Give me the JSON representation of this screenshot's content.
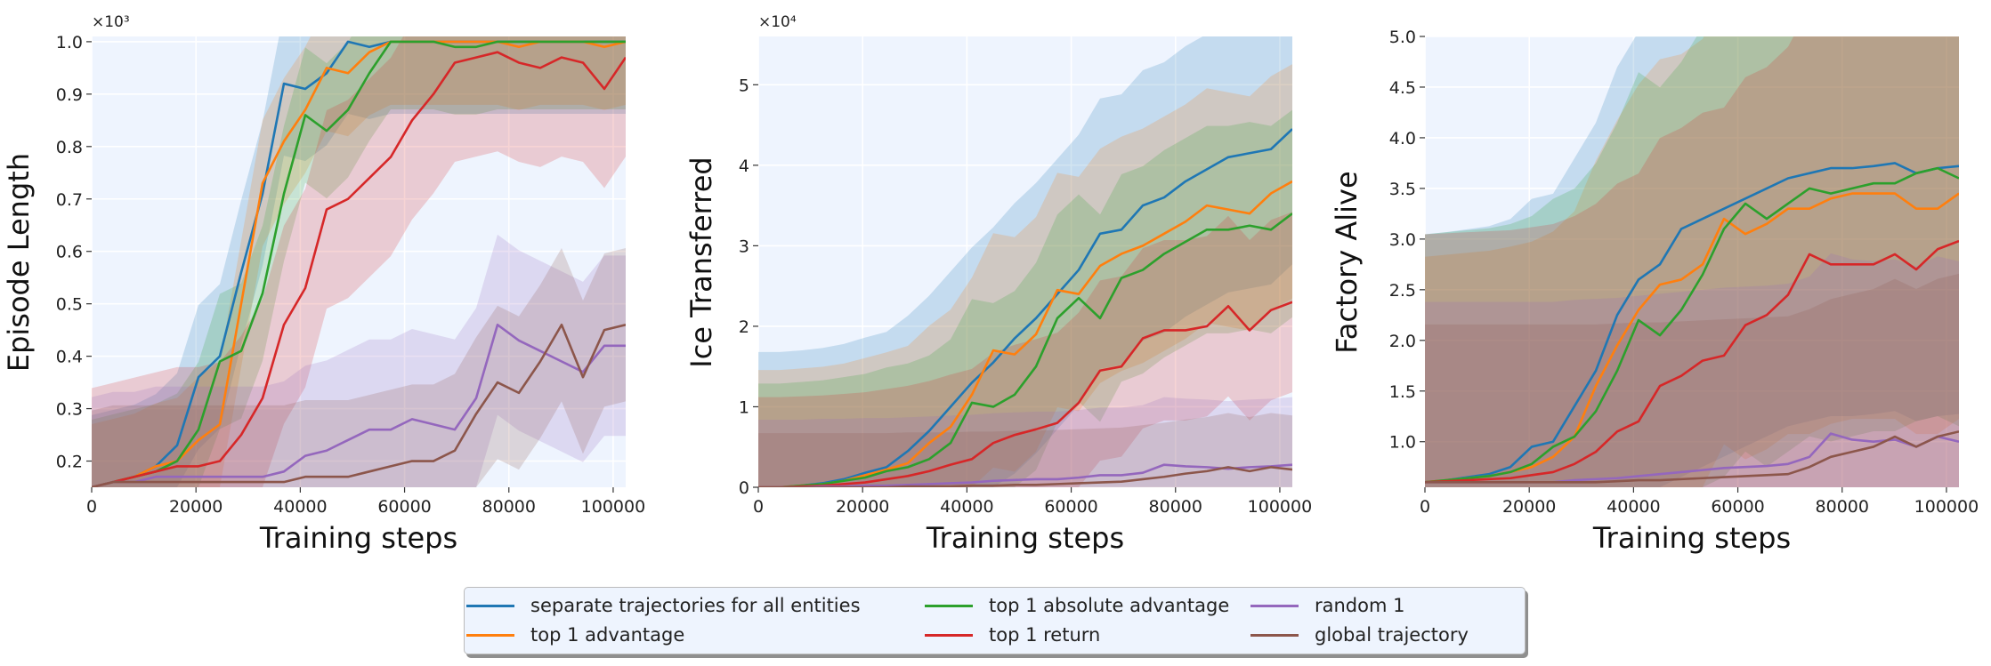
{
  "legend": {
    "items": [
      {
        "label": "separate trajectories for all entities",
        "color": "#1f77b4"
      },
      {
        "label": "top 1 advantage",
        "color": "#ff7f0e"
      },
      {
        "label": "top 1 absolute advantage",
        "color": "#2ca02c"
      },
      {
        "label": "top 1 return",
        "color": "#d62728"
      },
      {
        "label": "random 1",
        "color": "#9467bd"
      },
      {
        "label": "global trajectory",
        "color": "#8c564b"
      }
    ]
  },
  "colors": {
    "plot_background": "#eef4fe",
    "grid": "#ffffff",
    "series": [
      "#1f77b4",
      "#ff7f0e",
      "#2ca02c",
      "#d62728",
      "#9467bd",
      "#8c564b"
    ]
  },
  "chart_data": [
    {
      "type": "line",
      "xlabel": "Training steps",
      "ylabel": "Episode Length",
      "multiplier": "×10³",
      "xlim": [
        0,
        102400
      ],
      "ylim": [
        0.15,
        1.01
      ],
      "xticks": [
        0,
        20000,
        40000,
        60000,
        80000,
        100000
      ],
      "xtick_labels": [
        "0",
        "20000",
        "40000",
        "60000",
        "80000",
        "100000"
      ],
      "yticks": [
        0.2,
        0.3,
        0.4,
        0.5,
        0.6,
        0.7,
        0.8,
        0.9,
        1.0
      ],
      "ytick_labels": [
        "0.2",
        "0.3",
        "0.4",
        "0.5",
        "0.6",
        "0.7",
        "0.8",
        "0.9",
        "1.0"
      ],
      "grid": true,
      "x": [
        0,
        4096,
        8192,
        12288,
        16384,
        20480,
        24576,
        28672,
        32768,
        36864,
        40960,
        45056,
        49152,
        53248,
        57344,
        61440,
        65536,
        69632,
        73728,
        77824,
        81920,
        86016,
        90112,
        94208,
        98304,
        102400
      ],
      "series": [
        {
          "name": "separate trajectories for all entities",
          "color": "#1f77b4",
          "band": 0.16,
          "values": [
            0.15,
            0.16,
            0.17,
            0.19,
            0.23,
            0.36,
            0.4,
            0.56,
            0.71,
            0.92,
            0.91,
            0.94,
            1.0,
            0.99,
            1.0,
            1.0,
            1.0,
            1.0,
            1.0,
            1.0,
            1.0,
            1.0,
            1.0,
            1.0,
            1.0,
            1.0
          ]
        },
        {
          "name": "top 1 advantage",
          "color": "#ff7f0e",
          "band": 0.14,
          "values": [
            0.15,
            0.16,
            0.17,
            0.19,
            0.2,
            0.24,
            0.27,
            0.5,
            0.73,
            0.81,
            0.87,
            0.95,
            0.94,
            0.98,
            1.0,
            1.0,
            1.0,
            1.0,
            1.0,
            1.0,
            0.99,
            1.0,
            1.0,
            1.0,
            0.99,
            1.0
          ]
        },
        {
          "name": "top 1 absolute advantage",
          "color": "#2ca02c",
          "band": 0.15,
          "values": [
            0.15,
            0.16,
            0.17,
            0.18,
            0.2,
            0.26,
            0.39,
            0.41,
            0.52,
            0.71,
            0.86,
            0.83,
            0.87,
            0.94,
            1.0,
            1.0,
            1.0,
            0.99,
            0.99,
            1.0,
            1.0,
            1.0,
            1.0,
            1.0,
            1.0,
            1.0
          ]
        },
        {
          "name": "top 1 return",
          "color": "#d62728",
          "band": 0.22,
          "values": [
            0.15,
            0.16,
            0.17,
            0.18,
            0.19,
            0.19,
            0.2,
            0.25,
            0.32,
            0.46,
            0.53,
            0.68,
            0.7,
            0.74,
            0.78,
            0.85,
            0.9,
            0.96,
            0.97,
            0.98,
            0.96,
            0.95,
            0.97,
            0.96,
            0.91,
            0.97
          ]
        },
        {
          "name": "random 1",
          "color": "#9467bd",
          "band": 0.2,
          "values": [
            0.15,
            0.16,
            0.16,
            0.17,
            0.17,
            0.17,
            0.17,
            0.17,
            0.17,
            0.18,
            0.21,
            0.22,
            0.24,
            0.26,
            0.26,
            0.28,
            0.27,
            0.26,
            0.32,
            0.46,
            0.43,
            0.41,
            0.39,
            0.37,
            0.42,
            0.42
          ]
        },
        {
          "name": "global trajectory",
          "color": "#8c564b",
          "band": 0.17,
          "values": [
            0.15,
            0.16,
            0.16,
            0.16,
            0.16,
            0.16,
            0.16,
            0.16,
            0.16,
            0.16,
            0.17,
            0.17,
            0.17,
            0.18,
            0.19,
            0.2,
            0.2,
            0.22,
            0.29,
            0.35,
            0.33,
            0.39,
            0.46,
            0.36,
            0.45,
            0.46
          ]
        }
      ]
    },
    {
      "type": "line",
      "xlabel": "Training steps",
      "ylabel": "Ice Transferred",
      "multiplier": "×10⁴",
      "xlim": [
        0,
        102400
      ],
      "ylim": [
        0,
        5.6
      ],
      "xticks": [
        0,
        20000,
        40000,
        60000,
        80000,
        100000
      ],
      "xtick_labels": [
        "0",
        "20000",
        "40000",
        "60000",
        "80000",
        "100000"
      ],
      "yticks": [
        0,
        1,
        2,
        3,
        4,
        5
      ],
      "ytick_labels": [
        "0",
        "1",
        "2",
        "3",
        "4",
        "5"
      ],
      "grid": true,
      "x": [
        0,
        4096,
        8192,
        12288,
        16384,
        20480,
        24576,
        28672,
        32768,
        36864,
        40960,
        45056,
        49152,
        53248,
        57344,
        61440,
        65536,
        69632,
        73728,
        77824,
        81920,
        86016,
        90112,
        94208,
        98304,
        102400
      ],
      "series": [
        {
          "name": "separate trajectories for all entities",
          "color": "#1f77b4",
          "band": 0.3,
          "values": [
            0,
            0,
            0.02,
            0.05,
            0.1,
            0.18,
            0.25,
            0.45,
            0.7,
            1.0,
            1.3,
            1.55,
            1.85,
            2.1,
            2.4,
            2.7,
            3.15,
            3.2,
            3.5,
            3.6,
            3.8,
            3.95,
            4.1,
            4.15,
            4.2,
            4.45
          ]
        },
        {
          "name": "top 1 advantage",
          "color": "#ff7f0e",
          "band": 0.26,
          "values": [
            0,
            0,
            0.02,
            0.04,
            0.08,
            0.15,
            0.22,
            0.3,
            0.55,
            0.75,
            1.15,
            1.7,
            1.65,
            1.9,
            2.45,
            2.4,
            2.75,
            2.9,
            3.0,
            3.15,
            3.3,
            3.5,
            3.45,
            3.4,
            3.65,
            3.8
          ]
        },
        {
          "name": "top 1 absolute advantage",
          "color": "#2ca02c",
          "band": 0.23,
          "values": [
            0,
            0,
            0.02,
            0.04,
            0.08,
            0.12,
            0.2,
            0.25,
            0.35,
            0.55,
            1.05,
            1.0,
            1.15,
            1.5,
            2.1,
            2.35,
            2.1,
            2.6,
            2.7,
            2.9,
            3.05,
            3.2,
            3.2,
            3.25,
            3.2,
            3.4
          ]
        },
        {
          "name": "top 1 return",
          "color": "#d62728",
          "band": 0.2,
          "values": [
            0,
            0,
            0.01,
            0.02,
            0.04,
            0.06,
            0.1,
            0.14,
            0.2,
            0.28,
            0.35,
            0.55,
            0.65,
            0.72,
            0.8,
            1.05,
            1.45,
            1.5,
            1.85,
            1.95,
            1.95,
            2.0,
            2.25,
            1.95,
            2.2,
            2.3
          ]
        },
        {
          "name": "random 1",
          "color": "#9467bd",
          "band": 0.15,
          "values": [
            0,
            0,
            0,
            0.01,
            0.01,
            0.02,
            0.02,
            0.03,
            0.04,
            0.05,
            0.06,
            0.08,
            0.09,
            0.1,
            0.1,
            0.12,
            0.15,
            0.15,
            0.18,
            0.28,
            0.26,
            0.25,
            0.23,
            0.25,
            0.26,
            0.28
          ]
        },
        {
          "name": "global trajectory",
          "color": "#8c564b",
          "band": 0.12,
          "values": [
            0,
            0,
            0,
            0,
            0,
            0,
            0,
            0.01,
            0.01,
            0.01,
            0.02,
            0.02,
            0.03,
            0.03,
            0.04,
            0.05,
            0.06,
            0.07,
            0.1,
            0.13,
            0.17,
            0.2,
            0.25,
            0.2,
            0.25,
            0.22
          ]
        }
      ]
    },
    {
      "type": "line",
      "xlabel": "Training steps",
      "ylabel": "Factory Alive",
      "multiplier": "",
      "xlim": [
        0,
        102400
      ],
      "ylim": [
        0.55,
        5.0
      ],
      "xticks": [
        0,
        20000,
        40000,
        60000,
        80000,
        100000
      ],
      "xtick_labels": [
        "0",
        "20000",
        "40000",
        "60000",
        "80000",
        "100000"
      ],
      "yticks": [
        1.0,
        1.5,
        2.0,
        2.5,
        3.0,
        3.5,
        4.0,
        4.5,
        5.0
      ],
      "ytick_labels": [
        "1.0",
        "1.5",
        "2.0",
        "2.5",
        "3.0",
        "3.5",
        "4.0",
        "4.5",
        "5.0"
      ],
      "grid": true,
      "x": [
        0,
        4096,
        8192,
        12288,
        16384,
        20480,
        24576,
        28672,
        32768,
        36864,
        40960,
        45056,
        49152,
        53248,
        57344,
        61440,
        65536,
        69632,
        73728,
        77824,
        81920,
        86016,
        90112,
        94208,
        98304,
        102400
      ],
      "series": [
        {
          "name": "separate trajectories for all entities",
          "color": "#1f77b4",
          "band": 0.55,
          "values": [
            0.6,
            0.62,
            0.65,
            0.68,
            0.75,
            0.95,
            1.0,
            1.35,
            1.7,
            2.25,
            2.6,
            2.75,
            3.1,
            3.2,
            3.3,
            3.4,
            3.5,
            3.6,
            3.65,
            3.7,
            3.7,
            3.72,
            3.75,
            3.65,
            3.7,
            3.72
          ]
        },
        {
          "name": "top 1 advantage",
          "color": "#ff7f0e",
          "band": 0.5,
          "values": [
            0.6,
            0.62,
            0.64,
            0.66,
            0.7,
            0.75,
            0.85,
            1.05,
            1.55,
            1.95,
            2.3,
            2.55,
            2.6,
            2.75,
            3.2,
            3.05,
            3.15,
            3.3,
            3.3,
            3.4,
            3.45,
            3.45,
            3.45,
            3.3,
            3.3,
            3.45
          ]
        },
        {
          "name": "top 1 absolute advantage",
          "color": "#2ca02c",
          "band": 0.55,
          "values": [
            0.6,
            0.62,
            0.64,
            0.66,
            0.7,
            0.78,
            0.95,
            1.05,
            1.3,
            1.7,
            2.2,
            2.05,
            2.3,
            2.65,
            3.1,
            3.35,
            3.2,
            3.35,
            3.5,
            3.45,
            3.5,
            3.55,
            3.55,
            3.65,
            3.7,
            3.6
          ]
        },
        {
          "name": "top 1 return",
          "color": "#d62728",
          "band": 0.55,
          "values": [
            0.6,
            0.61,
            0.62,
            0.63,
            0.64,
            0.67,
            0.7,
            0.78,
            0.9,
            1.1,
            1.2,
            1.55,
            1.65,
            1.8,
            1.85,
            2.15,
            2.25,
            2.45,
            2.85,
            2.75,
            2.75,
            2.75,
            2.85,
            2.7,
            2.9,
            2.98
          ]
        },
        {
          "name": "random 1",
          "color": "#9467bd",
          "band": 0.4,
          "values": [
            0.6,
            0.6,
            0.6,
            0.6,
            0.6,
            0.6,
            0.6,
            0.62,
            0.63,
            0.64,
            0.66,
            0.68,
            0.7,
            0.72,
            0.74,
            0.75,
            0.76,
            0.78,
            0.85,
            1.08,
            1.02,
            1.0,
            1.02,
            0.95,
            1.05,
            1.0
          ]
        },
        {
          "name": "global trajectory",
          "color": "#8c564b",
          "band": 0.35,
          "values": [
            0.6,
            0.6,
            0.6,
            0.6,
            0.6,
            0.6,
            0.6,
            0.6,
            0.6,
            0.61,
            0.62,
            0.62,
            0.63,
            0.64,
            0.65,
            0.66,
            0.67,
            0.68,
            0.75,
            0.85,
            0.9,
            0.95,
            1.05,
            0.95,
            1.05,
            1.1
          ]
        }
      ]
    }
  ]
}
